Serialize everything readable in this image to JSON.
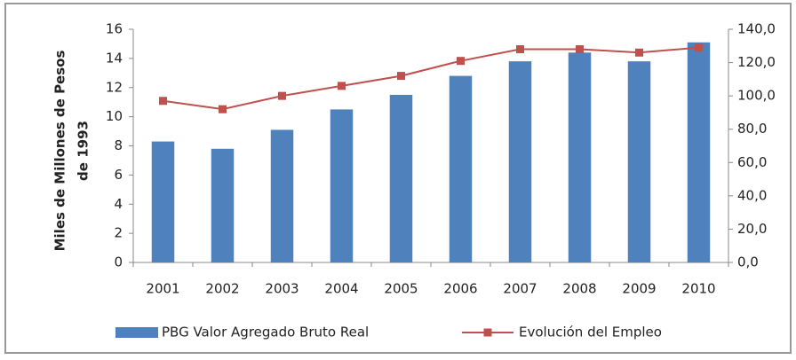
{
  "chart_data": {
    "type": "bar",
    "ylabel": [
      "Miles de Millones de Pesos",
      "de 1993"
    ],
    "categories": [
      "2001",
      "2002",
      "2003",
      "2004",
      "2005",
      "2006",
      "2007",
      "2008",
      "2009",
      "2010"
    ],
    "series": [
      {
        "name": "PBG Valor Agregado Bruto Real",
        "color": "#4f81bd",
        "type": "bar",
        "values": [
          8.3,
          7.8,
          9.1,
          10.5,
          11.5,
          12.8,
          13.8,
          14.4,
          13.8,
          15.1
        ]
      },
      {
        "name": "Evolución del Empleo",
        "color": "#c0504d",
        "type": "line",
        "axis": "y2",
        "values": [
          97,
          92,
          100,
          106,
          112,
          121,
          128,
          128,
          126,
          129
        ]
      }
    ],
    "ylim": [
      0,
      16
    ],
    "yticks": [
      0,
      2,
      4,
      6,
      8,
      10,
      12,
      14,
      16
    ],
    "y2lim": [
      0,
      140
    ],
    "y2ticks": [
      {
        "value": 0,
        "label": "0,0"
      },
      {
        "value": 20,
        "label": "20,0"
      },
      {
        "value": 40,
        "label": "40,0"
      },
      {
        "value": 60,
        "label": "60,0"
      },
      {
        "value": 80,
        "label": "80,0"
      },
      {
        "value": 100,
        "label": "100,0"
      },
      {
        "value": 120,
        "label": "120,0"
      },
      {
        "value": 140,
        "label": "140,0"
      }
    ],
    "grid": false,
    "legend": "bottom"
  }
}
